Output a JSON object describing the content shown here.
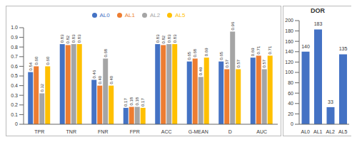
{
  "chart_data": [
    {
      "type": "bar",
      "categories": [
        "TPR",
        "TNR",
        "FNR",
        "FPR",
        "ACC",
        "G-MEAN",
        "D",
        "AUC"
      ],
      "series": [
        {
          "name": "AL0",
          "color": "#4472c4",
          "values": [
            0.54,
            0.83,
            0.46,
            0.17,
            0.83,
            0.65,
            0.65,
            0.69
          ],
          "value_labels": [
            "0.54",
            "0.83",
            "0.46",
            "0.17",
            "0.83",
            "0.65",
            "0.65",
            "0.69"
          ]
        },
        {
          "name": "AL1",
          "color": "#ed7d31",
          "values": [
            0.6,
            0.82,
            0.4,
            0.18,
            0.82,
            0.68,
            0.57,
            0.71
          ],
          "value_labels": [
            "0.60",
            "0.82",
            "0.40",
            "0.18",
            "0.82",
            "0.68",
            "0.57",
            "0.71"
          ]
        },
        {
          "name": "AL2",
          "color": "#a5a5a5",
          "values": [
            0.32,
            0.83,
            0.68,
            0.18,
            0.83,
            0.49,
            0.96,
            0.57
          ],
          "value_labels": [
            "0.32",
            "0.83",
            "0.68",
            "0.18",
            "0.83",
            "0.49",
            "0.96",
            "0.57"
          ]
        },
        {
          "name": "AL5",
          "color": "#ffc000",
          "values": [
            0.6,
            0.83,
            0.4,
            0.17,
            0.83,
            0.69,
            0.57,
            0.71
          ],
          "value_labels": [
            "0.60",
            "0.83",
            "0.40",
            "0.17",
            "0.83",
            "0.69",
            "0.57",
            "0.71"
          ]
        }
      ],
      "ylim": [
        0,
        1
      ],
      "yticks": [
        0,
        0.1,
        0.2,
        0.3,
        0.4,
        0.5,
        0.6,
        0.7,
        0.8,
        0.9,
        {
          "value": 1,
          "label": "1.0"
        }
      ],
      "legend": "top",
      "data_labels": true,
      "grid": false
    },
    {
      "type": "bar",
      "title": "DOR",
      "categories": [
        "AL0",
        "AL1",
        "AL2",
        "AL5"
      ],
      "values": [
        140,
        183,
        33,
        135
      ],
      "color": "#4472c4",
      "ylim": [
        0,
        200
      ],
      "yticks": [
        0,
        20,
        40,
        60,
        80,
        100,
        120,
        140,
        160,
        180,
        200
      ],
      "data_labels": true,
      "grid": false
    }
  ]
}
